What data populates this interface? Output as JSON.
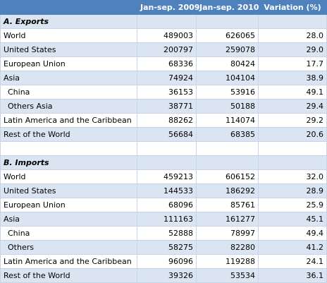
{
  "table": {
    "header": [
      "Jan-sep. 2009",
      "Jan-sep. 2010",
      "Variation (%)"
    ],
    "sections": [
      {
        "title": "A. Exports",
        "rows": [
          [
            "World",
            "489003",
            "626065",
            "28.0"
          ],
          [
            "United States",
            "200797",
            "259078",
            "29.0"
          ],
          [
            "European Union",
            "68336",
            "80424",
            "17.7"
          ],
          [
            "Asia",
            "74924",
            "104104",
            "38.9"
          ],
          [
            "China",
            "36153",
            "53916",
            "49.1"
          ],
          [
            "Others Asia",
            "38771",
            "50188",
            "29.4"
          ],
          [
            "Latin America and the Caribbean",
            "88262",
            "114074",
            "29.2"
          ],
          [
            "Rest of the World",
            "56684",
            "68385",
            "20.6"
          ]
        ]
      },
      {
        "title": "B. Imports",
        "rows": [
          [
            "World",
            "459213",
            "606152",
            "32.0"
          ],
          [
            "United States",
            "144533",
            "186292",
            "28.9"
          ],
          [
            "European Union",
            "68096",
            "85761",
            "25.9"
          ],
          [
            "Asia",
            "111163",
            "161277",
            "45.1"
          ],
          [
            "China",
            "52888",
            "78997",
            "49.4"
          ],
          [
            "Others",
            "58275",
            "82280",
            "41.2"
          ],
          [
            "Latin America and the Caribbean",
            "96096",
            "119288",
            "24.1"
          ],
          [
            "Rest of the World",
            "39326",
            "53534",
            "36.1"
          ]
        ]
      }
    ]
  }
}
